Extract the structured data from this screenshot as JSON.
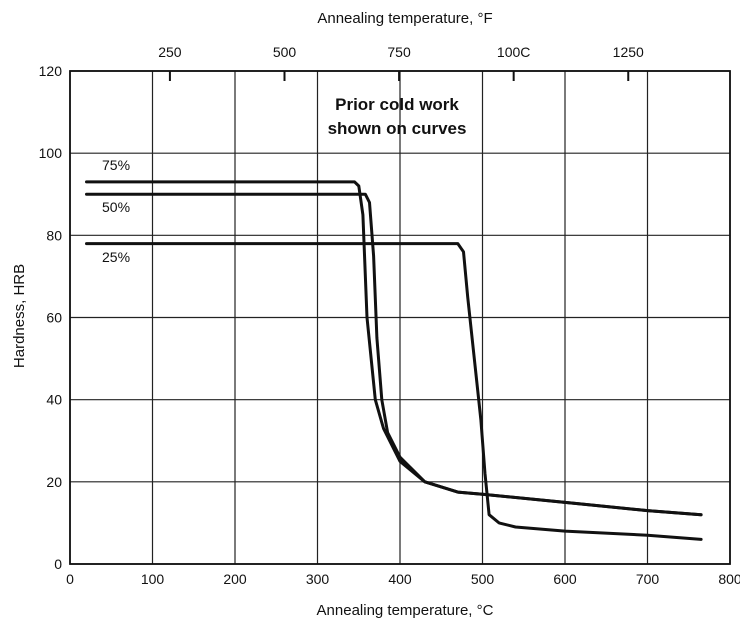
{
  "chart_data": {
    "type": "line",
    "xlabel": "Annealing temperature, °C",
    "x2label": "Annealing temperature, °F",
    "ylabel": "Hardness, HRB",
    "xlim": [
      0,
      800
    ],
    "ylim": [
      0,
      120
    ],
    "x_ticks": [
      0,
      100,
      200,
      300,
      400,
      500,
      600,
      700,
      800
    ],
    "x_tick_labels": [
      "0",
      "100",
      "200",
      "300",
      "400",
      "500",
      "600",
      "700",
      "800"
    ],
    "y_ticks": [
      0,
      20,
      40,
      60,
      80,
      100,
      120
    ],
    "y_tick_labels": [
      "0",
      "20",
      "40",
      "60",
      "80",
      "100",
      "120"
    ],
    "x2_ticks_f": [
      250,
      500,
      750,
      1000,
      1250
    ],
    "x2_tick_labels": [
      "250",
      "500",
      "750",
      "100C",
      "1250"
    ],
    "grid": true,
    "annotation": [
      "Prior cold work",
      "shown on curves"
    ],
    "series": [
      {
        "name": "75%",
        "x": [
          20,
          100,
          200,
          300,
          345,
          350,
          355,
          360,
          370,
          380,
          400,
          430,
          470,
          500,
          600,
          700,
          765
        ],
        "y": [
          93,
          93,
          93,
          93,
          93,
          92,
          85,
          60,
          40,
          33,
          25,
          20,
          17.5,
          17,
          15,
          13,
          12
        ]
      },
      {
        "name": "50%",
        "x": [
          20,
          100,
          200,
          300,
          358,
          363,
          368,
          372,
          378,
          385,
          400,
          430,
          470,
          500,
          600,
          700,
          765
        ],
        "y": [
          90,
          90,
          90,
          90,
          90,
          88,
          75,
          55,
          40,
          32,
          26,
          20,
          17.5,
          17,
          15,
          13,
          12
        ]
      },
      {
        "name": "25%",
        "x": [
          20,
          100,
          200,
          300,
          400,
          470,
          477,
          482,
          490,
          498,
          503,
          508,
          520,
          540,
          600,
          700,
          765
        ],
        "y": [
          78,
          78,
          78,
          78,
          78,
          78,
          76,
          65,
          50,
          35,
          22,
          12,
          10,
          9,
          8,
          7,
          6
        ]
      }
    ]
  }
}
